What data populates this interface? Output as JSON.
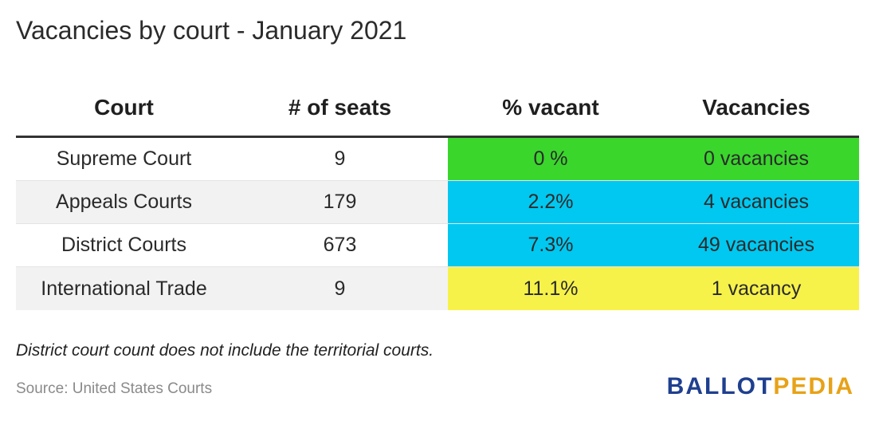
{
  "title": "Vacancies by court - January 2021",
  "headers": [
    "Court",
    "# of seats",
    "% vacant",
    "Vacancies"
  ],
  "rows": [
    {
      "court": "Supreme Court",
      "seats": "9",
      "pct": "0   %",
      "vacancies": "0 vacancies",
      "color": "#3ad62c"
    },
    {
      "court": "Appeals Courts",
      "seats": "179",
      "pct": "2.2%",
      "vacancies": "4 vacancies",
      "color": "#00c8f0"
    },
    {
      "court": "District Courts",
      "seats": "673",
      "pct": "7.3%",
      "vacancies": "49 vacancies",
      "color": "#00c8f0"
    },
    {
      "court": "International Trade",
      "seats": "9",
      "pct": "11.1%",
      "vacancies": "1 vacancy",
      "color": "#f7f24a"
    }
  ],
  "note": "District court count does not include the territorial courts.",
  "source": "Source: United States Courts",
  "logo": {
    "part1": "BALLOT",
    "part2": "PEDIA"
  },
  "chart_data": {
    "type": "table",
    "title": "Vacancies by court - January 2021",
    "columns": [
      "Court",
      "# of seats",
      "% vacant",
      "Vacancies"
    ],
    "rows": [
      [
        "Supreme Court",
        9,
        "0   %",
        "0 vacancies"
      ],
      [
        "Appeals Courts",
        179,
        "2.2%",
        "4 vacancies"
      ],
      [
        "District Courts",
        673,
        "7.3%",
        "49 vacancies"
      ],
      [
        "International Trade",
        9,
        "11.1%",
        "1 vacancy"
      ]
    ]
  }
}
